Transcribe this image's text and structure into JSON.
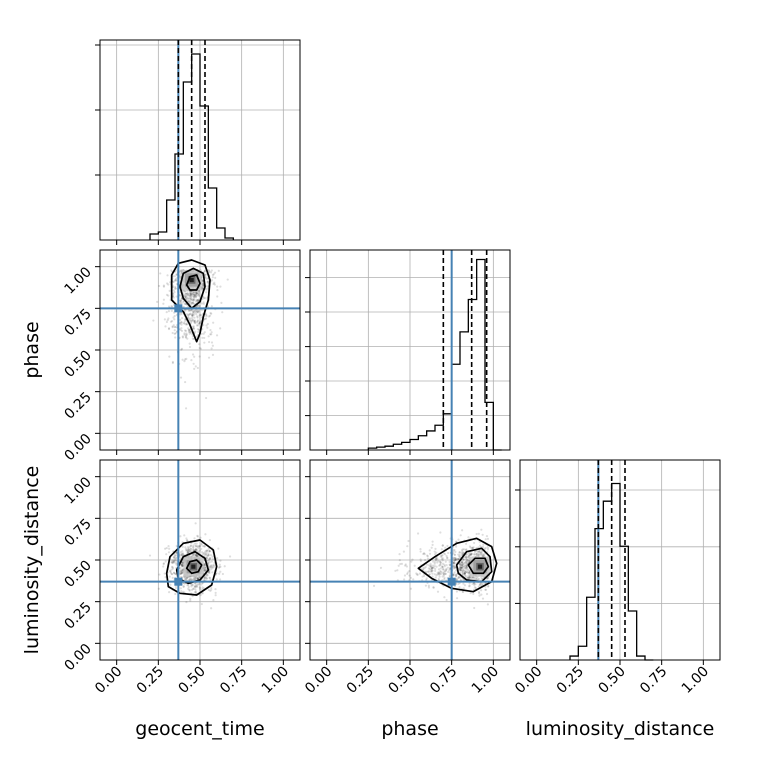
{
  "chart_data": {
    "type": "corner",
    "parameters": [
      "geocent_time",
      "phase",
      "luminosity_distance"
    ],
    "axis_labels": {
      "x": [
        "geocent_time",
        "phase",
        "luminosity_distance"
      ],
      "y": [
        "phase",
        "luminosity_distance"
      ]
    },
    "range": [
      -0.1,
      1.1
    ],
    "ticks": [
      0.0,
      0.25,
      0.5,
      0.75,
      1.0
    ],
    "tick_labels": [
      "0.00",
      "0.25",
      "0.50",
      "0.75",
      "1.00"
    ],
    "truths": [
      0.37,
      0.75,
      0.37
    ],
    "grid": true,
    "colors": {
      "truth": "#4682b4",
      "hist": "#000000",
      "grid": "#b0b0b0",
      "points": "#000000",
      "axes": "#000000"
    },
    "histograms": [
      {
        "parameter": "geocent_time",
        "bin_edges": [
          0.2,
          0.25,
          0.3,
          0.35,
          0.4,
          0.45,
          0.5,
          0.55,
          0.6,
          0.65,
          0.7
        ],
        "counts": [
          0.03,
          0.04,
          0.2,
          0.43,
          0.79,
          0.93,
          0.67,
          0.26,
          0.06,
          0.01
        ],
        "ylim": [
          0,
          1.0
        ],
        "quantiles": [
          0.37,
          0.45,
          0.53
        ]
      },
      {
        "parameter": "phase",
        "bin_edges": [
          0.25,
          0.3,
          0.35,
          0.4,
          0.45,
          0.5,
          0.55,
          0.6,
          0.65,
          0.7,
          0.75,
          0.8,
          0.85,
          0.9,
          0.95,
          1.0,
          1.05
        ],
        "counts": [
          0.01,
          0.015,
          0.02,
          0.03,
          0.04,
          0.055,
          0.075,
          0.1,
          0.13,
          0.19,
          0.45,
          0.62,
          0.79,
          1.0,
          0.25,
          0.0
        ],
        "ylim": [
          0,
          1.05
        ],
        "quantiles": [
          0.7,
          0.87,
          0.96
        ]
      },
      {
        "parameter": "luminosity_distance",
        "bin_edges": [
          0.2,
          0.25,
          0.3,
          0.35,
          0.4,
          0.45,
          0.5,
          0.55,
          0.6,
          0.65,
          0.7
        ],
        "counts": [
          0.02,
          0.07,
          0.32,
          0.67,
          0.81,
          0.9,
          0.58,
          0.25,
          0.02,
          0.0
        ],
        "ylim": [
          0,
          1.02
        ],
        "quantiles": [
          0.37,
          0.45,
          0.53
        ]
      }
    ],
    "joint": [
      {
        "x": "geocent_time",
        "y": "phase",
        "center": [
          0.45,
          0.92
        ],
        "spread": [
          0.065,
          0.16
        ],
        "scatter_extent": {
          "x": [
            0.2,
            0.7
          ],
          "y": [
            0.15,
            1.05
          ]
        },
        "contours": [
          [
            [
              0.33,
              0.8
            ],
            [
              0.33,
              0.95
            ],
            [
              0.37,
              1.02
            ],
            [
              0.45,
              1.04
            ],
            [
              0.53,
              1.01
            ],
            [
              0.56,
              0.92
            ],
            [
              0.55,
              0.8
            ],
            [
              0.52,
              0.7
            ],
            [
              0.5,
              0.6
            ],
            [
              0.48,
              0.55
            ],
            [
              0.44,
              0.65
            ],
            [
              0.4,
              0.73
            ]
          ],
          [
            [
              0.38,
              0.88
            ],
            [
              0.4,
              0.96
            ],
            [
              0.46,
              0.99
            ],
            [
              0.52,
              0.96
            ],
            [
              0.53,
              0.88
            ],
            [
              0.5,
              0.79
            ],
            [
              0.45,
              0.75
            ],
            [
              0.4,
              0.81
            ]
          ],
          [
            [
              0.42,
              0.89
            ],
            [
              0.44,
              0.94
            ],
            [
              0.48,
              0.95
            ],
            [
              0.5,
              0.9
            ],
            [
              0.48,
              0.86
            ],
            [
              0.44,
              0.86
            ]
          ]
        ]
      },
      {
        "x": "geocent_time",
        "y": "luminosity_distance",
        "center": [
          0.46,
          0.46
        ],
        "spread": [
          0.07,
          0.07
        ],
        "scatter_extent": {
          "x": [
            0.2,
            0.75
          ],
          "y": [
            0.2,
            0.72
          ]
        },
        "contours": [
          [
            [
              0.3,
              0.42
            ],
            [
              0.32,
              0.52
            ],
            [
              0.4,
              0.6
            ],
            [
              0.5,
              0.62
            ],
            [
              0.58,
              0.56
            ],
            [
              0.6,
              0.46
            ],
            [
              0.57,
              0.35
            ],
            [
              0.48,
              0.29
            ],
            [
              0.38,
              0.3
            ],
            [
              0.31,
              0.34
            ]
          ],
          [
            [
              0.36,
              0.44
            ],
            [
              0.4,
              0.52
            ],
            [
              0.47,
              0.55
            ],
            [
              0.53,
              0.51
            ],
            [
              0.55,
              0.44
            ],
            [
              0.5,
              0.38
            ],
            [
              0.43,
              0.36
            ],
            [
              0.37,
              0.39
            ]
          ],
          [
            [
              0.42,
              0.45
            ],
            [
              0.44,
              0.49
            ],
            [
              0.48,
              0.5
            ],
            [
              0.51,
              0.47
            ],
            [
              0.49,
              0.43
            ],
            [
              0.45,
              0.42
            ]
          ]
        ]
      },
      {
        "x": "phase",
        "y": "luminosity_distance",
        "center": [
          0.92,
          0.46
        ],
        "spread": [
          0.13,
          0.07
        ],
        "scatter_extent": {
          "x": [
            0.1,
            1.05
          ],
          "y": [
            0.2,
            0.72
          ]
        },
        "contours": [
          [
            [
              0.55,
              0.45
            ],
            [
              0.65,
              0.52
            ],
            [
              0.78,
              0.6
            ],
            [
              0.9,
              0.63
            ],
            [
              0.99,
              0.58
            ],
            [
              1.02,
              0.48
            ],
            [
              0.99,
              0.37
            ],
            [
              0.88,
              0.31
            ],
            [
              0.75,
              0.33
            ],
            [
              0.63,
              0.39
            ]
          ],
          [
            [
              0.78,
              0.47
            ],
            [
              0.84,
              0.55
            ],
            [
              0.93,
              0.57
            ],
            [
              0.98,
              0.52
            ],
            [
              0.99,
              0.43
            ],
            [
              0.93,
              0.37
            ],
            [
              0.84,
              0.38
            ],
            [
              0.79,
              0.42
            ]
          ],
          [
            [
              0.85,
              0.47
            ],
            [
              0.89,
              0.51
            ],
            [
              0.95,
              0.51
            ],
            [
              0.97,
              0.46
            ],
            [
              0.94,
              0.42
            ],
            [
              0.88,
              0.42
            ]
          ]
        ]
      }
    ]
  }
}
